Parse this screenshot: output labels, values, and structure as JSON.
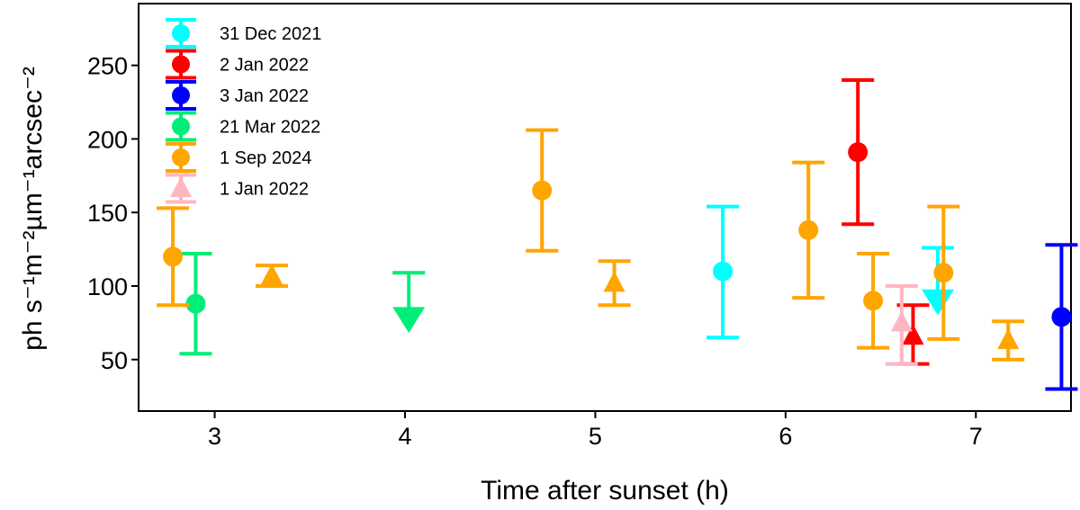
{
  "chart_data": {
    "type": "scatter",
    "xlabel": "Time after sunset (h)",
    "ylabel": "ph s⁻¹m⁻²µm⁻¹arcsec⁻²",
    "xlim": [
      2.6,
      7.5
    ],
    "ylim": [
      15,
      292
    ],
    "xticks": [
      3,
      4,
      5,
      6,
      7
    ],
    "yticks": [
      50,
      100,
      150,
      200,
      250
    ],
    "grid": false,
    "legend_position": "top-left",
    "series": [
      {
        "name": "31 Dec 2021",
        "color": "#00ffff",
        "marker": "circle",
        "points": [
          {
            "x": 5.67,
            "y": 110,
            "yerr_low": 65,
            "yerr_high": 154
          }
        ]
      },
      {
        "name": "2 Jan 2022",
        "color": "#ff0000",
        "marker": "circle",
        "points": [
          {
            "x": 6.38,
            "y": 191,
            "yerr_low": 142,
            "yerr_high": 240
          }
        ]
      },
      {
        "name": "3 Jan 2022",
        "color": "#0000ff",
        "marker": "circle",
        "points": [
          {
            "x": 7.45,
            "y": 79,
            "yerr_low": 30,
            "yerr_high": 128
          }
        ]
      },
      {
        "name": "21 Mar 2022",
        "color": "#00ee77",
        "marker": "circle",
        "points": [
          {
            "x": 2.9,
            "y": 88,
            "yerr_low": 54,
            "yerr_high": 122
          }
        ]
      },
      {
        "name": "1 Sep 2024",
        "color": "#ffa500",
        "marker": "circle",
        "points": [
          {
            "x": 2.78,
            "y": 120,
            "yerr_low": 87,
            "yerr_high": 153
          },
          {
            "x": 4.72,
            "y": 165,
            "yerr_low": 124,
            "yerr_high": 206
          },
          {
            "x": 6.12,
            "y": 138,
            "yerr_low": 92,
            "yerr_high": 184
          },
          {
            "x": 6.46,
            "y": 90,
            "yerr_low": 58,
            "yerr_high": 122
          },
          {
            "x": 6.83,
            "y": 109,
            "yerr_low": 64,
            "yerr_high": 154
          }
        ]
      },
      {
        "name": "1 Jan 2022",
        "color": "#ffb6c1",
        "marker": "triangle-up",
        "points": [
          {
            "x": 6.61,
            "y": 75,
            "yerr_low": 47,
            "yerr_high": 100
          }
        ]
      }
    ],
    "limit_markers": [
      {
        "color": "#ffa500",
        "direction": "lower",
        "x": 3.3,
        "y": 107,
        "bar_low": 100,
        "bar_high": 114
      },
      {
        "color": "#ffa500",
        "direction": "lower",
        "x": 5.1,
        "y": 102,
        "bar_low": 87,
        "bar_high": 117
      },
      {
        "color": "#ffa500",
        "direction": "lower",
        "x": 7.17,
        "y": 63,
        "bar_low": 50,
        "bar_high": 76
      },
      {
        "color": "#ff0000",
        "direction": "lower",
        "x": 6.67,
        "y": 66,
        "bar_low": 47,
        "bar_high": 87
      },
      {
        "color": "#00ee77",
        "direction": "upper",
        "x": 4.02,
        "y": 78,
        "bar_high": 109
      },
      {
        "color": "#00ffff",
        "direction": "upper",
        "x": 6.8,
        "y": 90,
        "bar_high": 126
      }
    ]
  }
}
